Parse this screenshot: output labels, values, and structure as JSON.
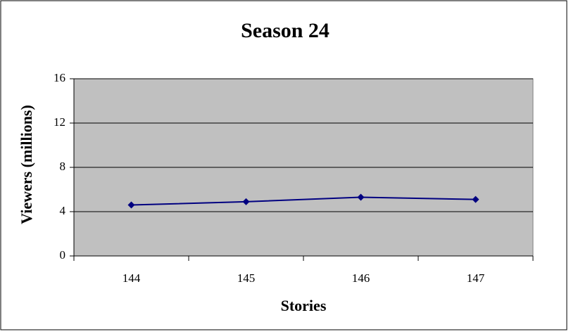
{
  "chart_data": {
    "type": "line",
    "title": "Season 24",
    "x_label": "Stories",
    "y_label": "Viewers (millions)",
    "categories": [
      "144",
      "145",
      "146",
      "147"
    ],
    "series": [
      {
        "name": "Viewers",
        "color": "#000080",
        "values": [
          4.6,
          4.9,
          5.3,
          5.1
        ]
      }
    ],
    "ylim": [
      0,
      16
    ],
    "yticks": [
      0,
      4,
      8,
      12,
      16
    ],
    "grid": true,
    "plot_background": "#c0c0c0"
  }
}
